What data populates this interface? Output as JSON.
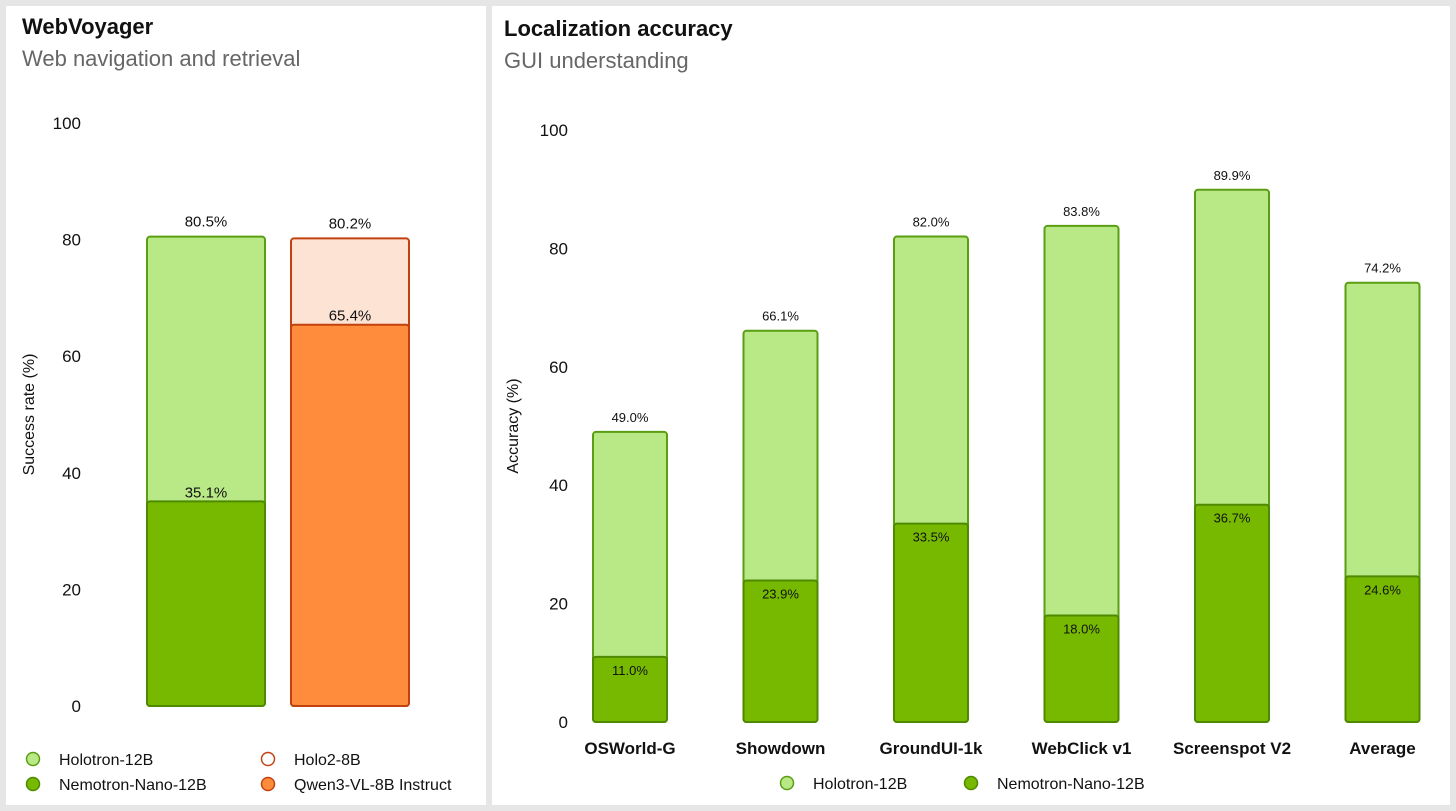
{
  "left": {
    "title": "WebVoyager",
    "subtitle": "Web navigation and retrieval"
  },
  "right": {
    "title": "Localization accuracy",
    "subtitle": "GUI understanding"
  },
  "colors": {
    "holotron_fill": "#b9e886",
    "holotron_stroke": "#5a9e12",
    "nemotron_fill": "#76b900",
    "nemotron_stroke": "#4d8a00",
    "holo2_fill": "#fde3d4",
    "holo2_stroke": "#c2420f",
    "qwen_fill": "#ff8c3c",
    "qwen_stroke": "#c2420f"
  },
  "chart_data": [
    {
      "type": "bar",
      "title": "WebVoyager",
      "subtitle": "Web navigation and retrieval",
      "ylabel": "Success rate (%)",
      "ylim": [
        0,
        100
      ],
      "yticks": [
        "0",
        "20",
        "40",
        "60",
        "80",
        "100"
      ],
      "grid": false,
      "legend": "bottom",
      "stacked_overlay": true,
      "groups": [
        {
          "back": {
            "name": "Holotron-12B",
            "value": 80.5,
            "label": "80.5%"
          },
          "front": {
            "name": "Nemotron-Nano-12B",
            "value": 35.1,
            "label": "35.1%"
          }
        },
        {
          "back": {
            "name": "Holo2-8B",
            "value": 80.2,
            "label": "80.2%"
          },
          "front": {
            "name": "Qwen3-VL-8B Instruct",
            "value": 65.4,
            "label": "65.4%"
          }
        }
      ],
      "legend_entries": [
        "Holotron-12B",
        "Holo2-8B",
        "Nemotron-Nano-12B",
        "Qwen3-VL-8B Instruct"
      ]
    },
    {
      "type": "bar",
      "title": "Localization accuracy",
      "subtitle": "GUI understanding",
      "ylabel": "Accuracy (%)",
      "ylim": [
        0,
        100
      ],
      "yticks": [
        "0",
        "20",
        "40",
        "60",
        "80",
        "100"
      ],
      "grid": false,
      "legend": "bottom",
      "stacked_overlay": true,
      "categories": [
        "OSWorld-G",
        "Showdown",
        "GroundUI-1k",
        "WebClick v1",
        "Screenspot V2",
        "Average"
      ],
      "series": [
        {
          "name": "Holotron-12B",
          "values": [
            49.0,
            66.1,
            82.0,
            83.8,
            89.9,
            74.2
          ],
          "labels": [
            "49.0%",
            "66.1%",
            "82.0%",
            "83.8%",
            "89.9%",
            "74.2%"
          ]
        },
        {
          "name": "Nemotron-Nano-12B",
          "values": [
            11.0,
            23.9,
            33.5,
            18.0,
            36.7,
            24.6
          ],
          "labels": [
            "11.0%",
            "23.9%",
            "33.5%",
            "18.0%",
            "36.7%",
            "24.6%"
          ]
        }
      ]
    }
  ]
}
